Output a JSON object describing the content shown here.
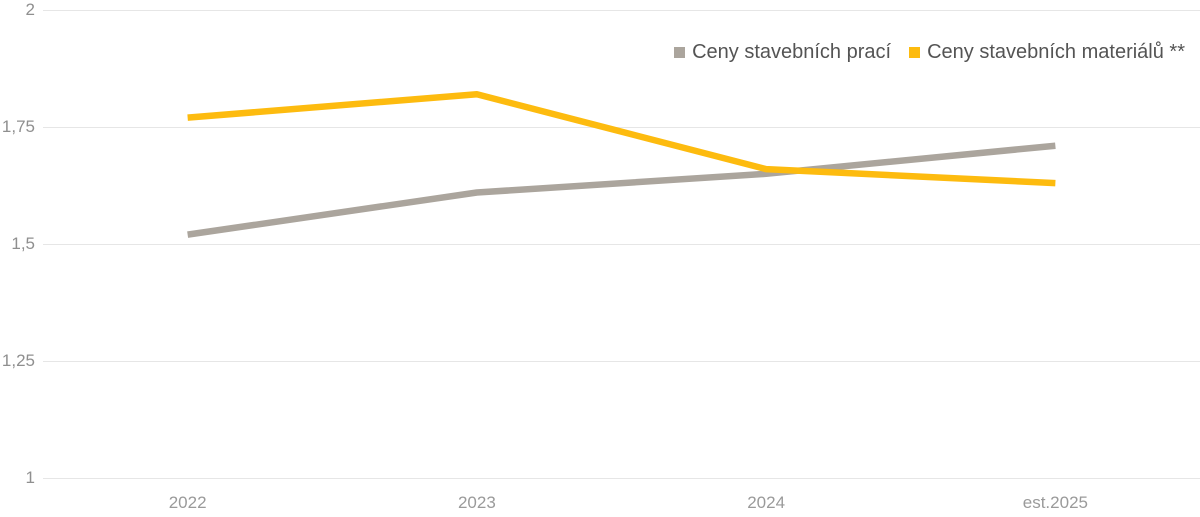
{
  "chart_data": {
    "type": "line",
    "title": "",
    "xlabel": "",
    "ylabel": "",
    "categories": [
      "2022",
      "2023",
      "2024",
      "est.2025"
    ],
    "series": [
      {
        "name": "Ceny stavebních prací",
        "color": "#aba59d",
        "values": [
          1.52,
          1.61,
          1.65,
          1.71
        ]
      },
      {
        "name": "Ceny stavebních materiálů **",
        "color": "#fdbb0f",
        "values": [
          1.77,
          1.82,
          1.66,
          1.63
        ]
      }
    ],
    "ylim": [
      1,
      2
    ],
    "y_ticks": [
      {
        "value": 2,
        "label": "2"
      },
      {
        "value": 1.75,
        "label": "1,75"
      },
      {
        "value": 1.5,
        "label": "1,5"
      },
      {
        "value": 1.25,
        "label": "1,25"
      },
      {
        "value": 1,
        "label": "1"
      }
    ],
    "grid": "horizontal",
    "legend_position": "top-right",
    "line_width": 6.5,
    "colors": {
      "gridline": "#e6e6e6",
      "y_tick_text": "#8f8f8f",
      "x_tick_text": "#9a9a9a",
      "legend_text": "#545454",
      "background": "#ffffff"
    }
  }
}
